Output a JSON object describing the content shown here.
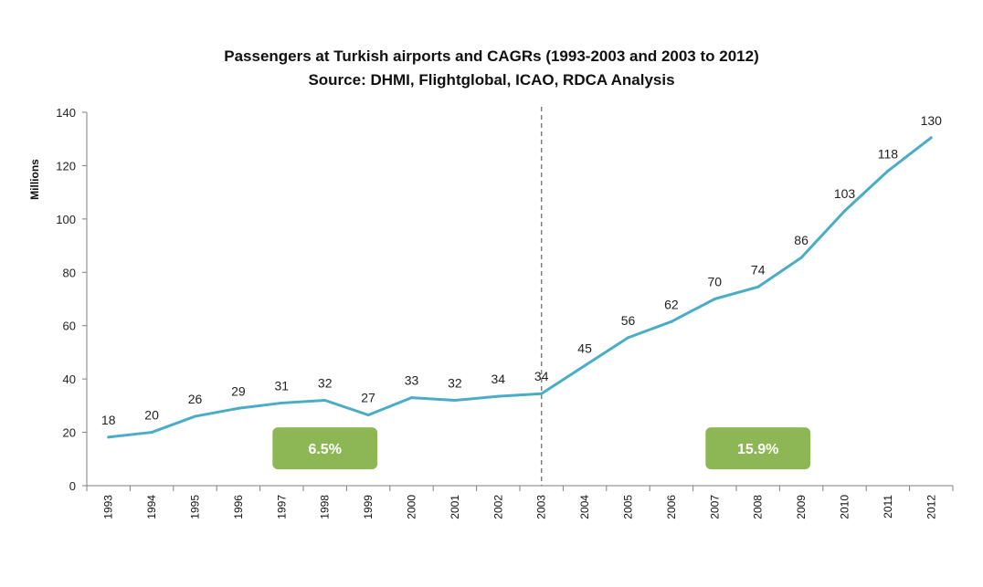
{
  "chart_data": {
    "type": "line",
    "title": "Passengers at Turkish airports and CAGRs (1993-2003 and 2003 to 2012)",
    "subtitle": "Source: DHMI, Flightglobal, ICAO, RDCA Analysis",
    "ylabel": "Millions",
    "xlabel": "",
    "ylim": [
      0,
      140
    ],
    "yticks": [
      0,
      20,
      40,
      60,
      80,
      100,
      120,
      140
    ],
    "categories": [
      "1993",
      "1994",
      "1995",
      "1996",
      "1997",
      "1998",
      "1999",
      "2000",
      "2001",
      "2002",
      "2003",
      "2004",
      "2005",
      "2006",
      "2007",
      "2008",
      "2009",
      "2010",
      "2011",
      "2012"
    ],
    "values": [
      18.2,
      20,
      26,
      29,
      31,
      32,
      26.5,
      33,
      32,
      33.5,
      34.5,
      45,
      55.5,
      61.5,
      70,
      74.5,
      85.5,
      103,
      118,
      130.5
    ],
    "data_labels": [
      "18",
      "20",
      "26",
      "29",
      "31",
      "32",
      "27",
      "33",
      "32",
      "34",
      "34",
      "45",
      "56",
      "62",
      "70",
      "74",
      "86",
      "103",
      "118",
      "130"
    ],
    "line_color": "#4bacc6",
    "divider": {
      "category": "2003",
      "style": "dashed",
      "color": "#7f7f7f"
    },
    "annotations": [
      {
        "text": "6.5%",
        "period": [
          "1997",
          "1999"
        ],
        "y": 14,
        "color": "#8db655"
      },
      {
        "text": "15.9%",
        "period": [
          "2007",
          "2009"
        ],
        "y": 14,
        "color": "#8db655"
      }
    ],
    "grid": false,
    "legend": "none"
  }
}
